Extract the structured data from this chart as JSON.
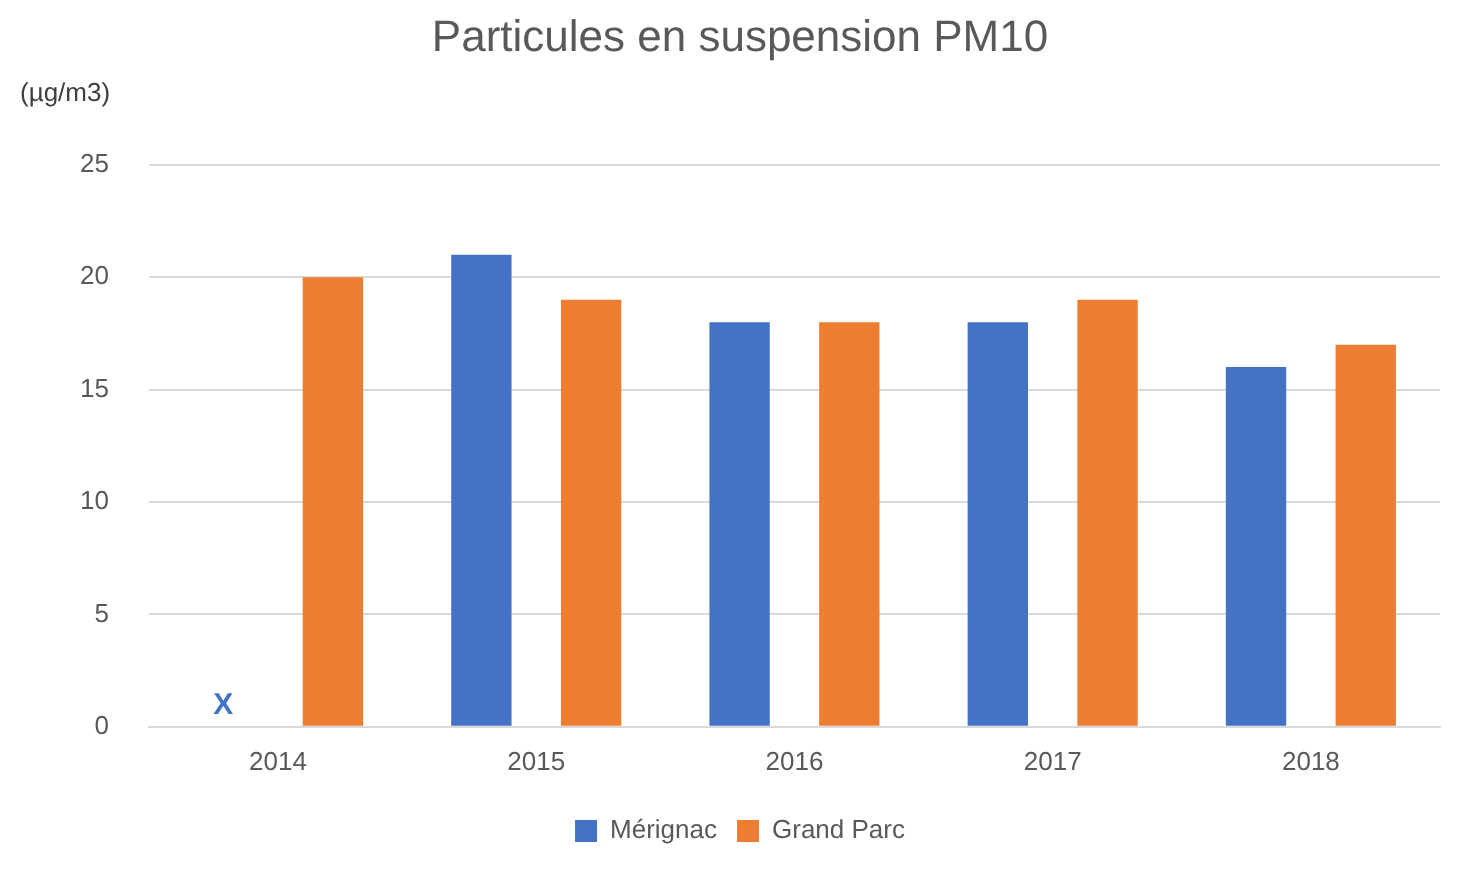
{
  "chart_data": {
    "type": "bar",
    "title": "Particules en suspension PM10",
    "ylabel": "(µg/m3)",
    "categories": [
      "2014",
      "2015",
      "2016",
      "2017",
      "2018"
    ],
    "series": [
      {
        "name": "Mérignac",
        "color": "#4472c4",
        "values": [
          null,
          21,
          18,
          18,
          16
        ]
      },
      {
        "name": "Grand Parc",
        "color": "#ed7d31",
        "values": [
          20,
          19,
          18,
          19,
          17
        ]
      }
    ],
    "ylim": [
      0,
      25
    ],
    "yticks": [
      0,
      5,
      10,
      15,
      20,
      25
    ],
    "grid": "y",
    "legend": "bottom",
    "annotations": [
      "X"
    ]
  }
}
